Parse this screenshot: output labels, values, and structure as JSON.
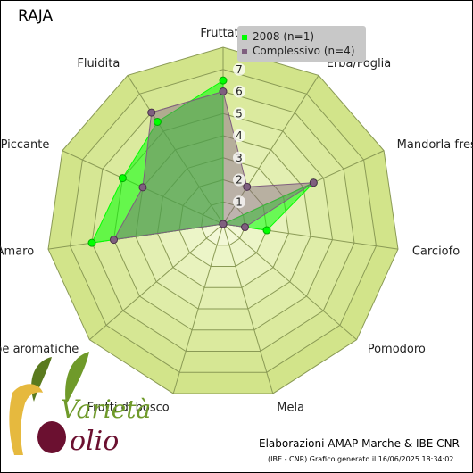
{
  "chart_data": {
    "type": "radar",
    "title": "RAJA",
    "axes": [
      "Fruttato",
      "Erba/Foglia",
      "Mandorla fresca",
      "Carciofo",
      "Pomodoro",
      "Mela",
      "Frutti di bosco",
      "Erbe aromatiche",
      "Amaro",
      "Piccante",
      "Fluidita"
    ],
    "ticks": [
      "1",
      "2",
      "3",
      "4",
      "5",
      "6",
      "7"
    ],
    "rmin": 0,
    "rmax": 8,
    "series": [
      {
        "name": "2008 (n=1)",
        "color": "#00ff00",
        "values": [
          6.5,
          0.0,
          4.5,
          2.0,
          0.0,
          0.0,
          0.0,
          0.0,
          6.0,
          5.0,
          5.5
        ]
      },
      {
        "name": "Complessivo (n=4)",
        "color": "#7f5f7f",
        "values": [
          6.0,
          2.0,
          4.5,
          1.0,
          0.0,
          0.0,
          0.0,
          0.0,
          5.0,
          4.0,
          6.0
        ]
      }
    ]
  },
  "credit": "Elaborazioni AMAP Marche & IBE CNR",
  "generated": "(IBE - CNR) Grafico generato il 16/06/2025 18:34:02",
  "logo": {
    "line1": "Varietà",
    "line2": "olio"
  }
}
